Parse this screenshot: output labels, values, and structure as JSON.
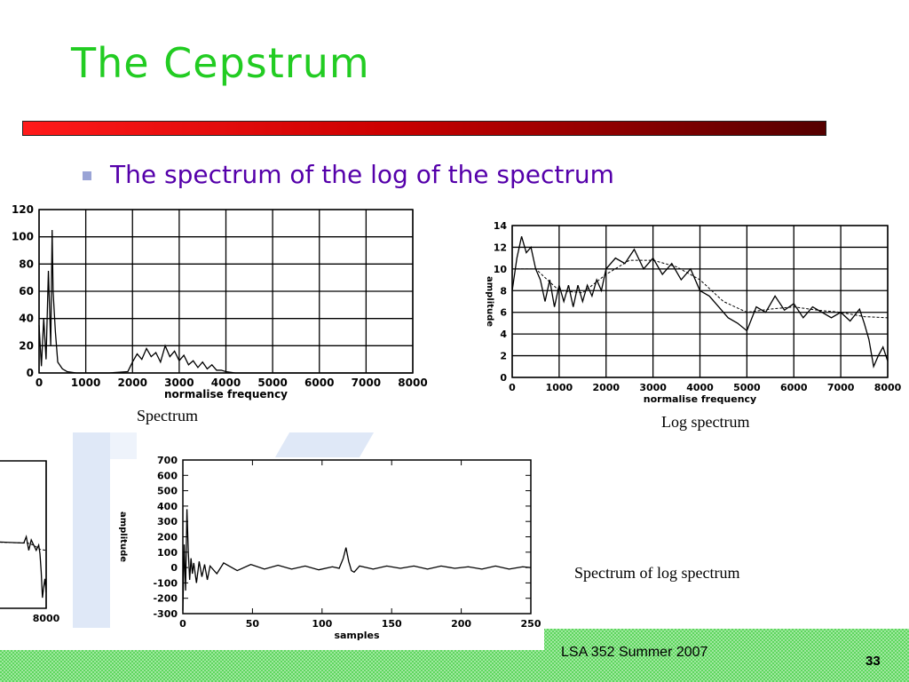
{
  "slide": {
    "title": "The Cepstrum",
    "bullet": "The spectrum of the log of the spectrum",
    "footer": "LSA 352 Summer 2007",
    "page_number": "33",
    "colors": {
      "title": "#22cc22",
      "bullet_text": "#5500aa",
      "rule_start": "#ff1a1a",
      "rule_end": "#550000",
      "footer_bg": "#7fe07f"
    }
  },
  "captions": {
    "spectrum": "Spectrum",
    "log_spectrum": "Log spectrum",
    "spec_of_log": "Spectrum of log spectrum"
  },
  "chart_data": [
    {
      "id": "spectrum",
      "type": "line",
      "xlabel": "normalise frequency",
      "ylabel": "",
      "xlim": [
        0,
        8000
      ],
      "ylim": [
        0,
        120
      ],
      "x_ticks": [
        "0",
        "1000",
        "2000",
        "3000",
        "4000",
        "5000",
        "6000",
        "7000",
        "8000"
      ],
      "y_ticks": [
        "0",
        "20",
        "40",
        "60",
        "80",
        "100",
        "120"
      ],
      "grid": true,
      "x": [
        0,
        50,
        100,
        150,
        200,
        250,
        280,
        300,
        350,
        400,
        500,
        600,
        800,
        1000,
        1500,
        1900,
        2000,
        2100,
        2200,
        2300,
        2400,
        2500,
        2600,
        2700,
        2800,
        2900,
        3000,
        3100,
        3200,
        3300,
        3400,
        3500,
        3600,
        3700,
        3800,
        3900,
        4000,
        4200,
        5000,
        6000,
        7000,
        8000
      ],
      "y": [
        35,
        5,
        40,
        10,
        75,
        20,
        105,
        60,
        30,
        8,
        3,
        1,
        0,
        0,
        0,
        1,
        8,
        14,
        10,
        18,
        12,
        15,
        8,
        20,
        12,
        16,
        9,
        13,
        6,
        9,
        4,
        8,
        3,
        6,
        2,
        2,
        1,
        0,
        0,
        0,
        0,
        0
      ]
    },
    {
      "id": "log_spectrum",
      "type": "line",
      "xlabel": "normalise frequency",
      "ylabel": "amplitude",
      "xlim": [
        0,
        8000
      ],
      "ylim": [
        0,
        14
      ],
      "x_ticks": [
        "0",
        "1000",
        "2000",
        "3000",
        "4000",
        "5000",
        "6000",
        "7000",
        "8000"
      ],
      "y_ticks": [
        "0",
        "2",
        "4",
        "6",
        "8",
        "10",
        "12",
        "14"
      ],
      "grid": true,
      "x": [
        0,
        100,
        200,
        300,
        400,
        500,
        600,
        700,
        800,
        900,
        1000,
        1100,
        1200,
        1300,
        1400,
        1500,
        1600,
        1700,
        1800,
        1900,
        2000,
        2200,
        2400,
        2600,
        2800,
        3000,
        3200,
        3400,
        3600,
        3800,
        4000,
        4200,
        4400,
        4600,
        4800,
        5000,
        5200,
        5400,
        5600,
        5800,
        6000,
        6200,
        6400,
        6600,
        6800,
        7000,
        7200,
        7400,
        7500,
        7600,
        7700,
        7800,
        7900,
        8000
      ],
      "y": [
        8,
        11,
        13,
        11.5,
        12,
        10,
        9,
        7,
        9,
        6.5,
        8.5,
        7,
        8.5,
        6.5,
        8.5,
        7,
        8.5,
        7.5,
        9,
        8,
        10,
        11,
        10.5,
        11.8,
        10,
        11,
        9.5,
        10.5,
        9,
        10,
        8,
        7.5,
        6.5,
        5.5,
        5,
        4.3,
        6.5,
        6,
        7.5,
        6.2,
        6.8,
        5.5,
        6.5,
        6,
        5.5,
        6,
        5.2,
        6.3,
        5,
        3.5,
        1,
        2,
        2.8,
        1.5
      ],
      "smooth_x": [
        0,
        500,
        1000,
        1500,
        2000,
        2500,
        3000,
        3500,
        4000,
        4500,
        5000,
        5500,
        6000,
        6500,
        7000,
        7500,
        8000
      ],
      "smooth_y": [
        10,
        10,
        8,
        7.8,
        9.5,
        10.8,
        10.8,
        10.2,
        9,
        7,
        6,
        6.3,
        6.5,
        6.2,
        6,
        5.6,
        5.5
      ]
    },
    {
      "id": "spectrum_of_log",
      "type": "line",
      "xlabel": "samples",
      "ylabel": "amplitude",
      "xlim": [
        0,
        256
      ],
      "ylim": [
        -300,
        700
      ],
      "x_ticks": [
        "0",
        "50",
        "100",
        "150",
        "200",
        "250"
      ],
      "y_ticks": [
        "-300",
        "-200",
        "-100",
        "0",
        "100",
        "200",
        "300",
        "400",
        "500",
        "600",
        "700"
      ],
      "grid": false,
      "x": [
        0,
        1,
        2,
        3,
        4,
        5,
        6,
        7,
        8,
        10,
        12,
        14,
        16,
        18,
        20,
        25,
        30,
        40,
        50,
        60,
        70,
        80,
        90,
        100,
        110,
        115,
        118,
        120,
        122,
        124,
        126,
        130,
        140,
        150,
        160,
        170,
        180,
        190,
        200,
        210,
        220,
        230,
        240,
        250,
        256
      ],
      "y": [
        -280,
        150,
        -150,
        380,
        100,
        -80,
        60,
        -40,
        30,
        -100,
        40,
        -60,
        20,
        -80,
        10,
        -40,
        30,
        -20,
        20,
        -10,
        15,
        -10,
        10,
        -15,
        5,
        -5,
        60,
        130,
        40,
        -20,
        -30,
        10,
        -10,
        10,
        -5,
        10,
        -10,
        10,
        -5,
        5,
        -10,
        10,
        -10,
        5,
        0
      ]
    },
    {
      "id": "log_spectrum_partial",
      "type": "line",
      "xlabel": "",
      "ylabel": "",
      "xlim": [
        0,
        8000
      ],
      "ylim": [
        0,
        14
      ],
      "x_ticks": [
        "000",
        "8000"
      ],
      "y_ticks": [],
      "grid": true,
      "x": [
        0,
        6200,
        6400,
        6600,
        6800,
        7000,
        7200,
        7400,
        7500,
        7600,
        7700,
        7800,
        7900,
        8000
      ],
      "y": [
        6.5,
        6.2,
        6.8,
        5.5,
        6.5,
        6,
        5.5,
        6,
        5.2,
        3.5,
        1,
        2,
        2.8,
        1.5
      ],
      "smooth_x": [
        0,
        6500,
        7000,
        7500,
        8000
      ],
      "smooth_y": [
        6.4,
        6.2,
        6,
        5.6,
        5.5
      ]
    }
  ]
}
